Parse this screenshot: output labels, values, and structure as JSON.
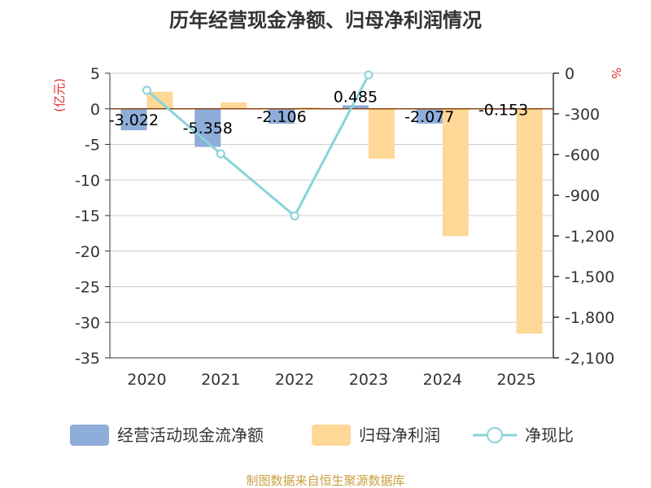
{
  "chart_data": {
    "type": "bar",
    "title": "历年经营现金净额、归母净利润情况",
    "categories": [
      "2020",
      "2021",
      "2022",
      "2023",
      "2024",
      "2025"
    ],
    "series": [
      {
        "name": "经营活动现金流净额",
        "kind": "bar",
        "axis": "left",
        "color": "#8fadd9",
        "values": [
          -3.022,
          -5.358,
          -2.106,
          0.485,
          -2.077,
          -0.153
        ],
        "labels": [
          "-3.022",
          "-5.358",
          "-2.106",
          "0.485",
          "-2.077",
          "-0.153"
        ]
      },
      {
        "name": "归母净利润",
        "kind": "bar",
        "axis": "left",
        "color": "#ffd796",
        "values": [
          2.4,
          0.9,
          0.2,
          -7.0,
          -17.9,
          -31.6
        ]
      },
      {
        "name": "净现比",
        "kind": "line",
        "axis": "right",
        "color": "#88d4d8",
        "values": [
          -126,
          -595,
          -1053,
          -13,
          null,
          null
        ]
      }
    ],
    "y_left": {
      "unit": "(亿元)",
      "ylim": [
        -35,
        5
      ],
      "ticks": [
        "5",
        "0",
        "-5",
        "-10",
        "-15",
        "-20",
        "-25",
        "-30",
        "-35"
      ],
      "tick_values": [
        5,
        0,
        -5,
        -10,
        -15,
        -20,
        -25,
        -30,
        -35
      ]
    },
    "y_right": {
      "unit": "%",
      "ylim": [
        -2100,
        0
      ],
      "ticks": [
        "0",
        "-300",
        "-600",
        "-900",
        "-1,200",
        "-1,500",
        "-1,800",
        "-2,100"
      ],
      "tick_values": [
        0,
        -300,
        -600,
        -900,
        -1200,
        -1500,
        -1800,
        -2100
      ]
    },
    "colors": {
      "unit_left": "#e03030",
      "unit_right": "#e03030",
      "source": "#c8a040",
      "zero_line": "#8b4513",
      "grid": "#cccccc"
    }
  },
  "legend": {
    "items": [
      "经营活动现金流净额",
      "归母净利润",
      "净现比"
    ]
  },
  "source_text": "制图数据来自恒生聚源数据库"
}
